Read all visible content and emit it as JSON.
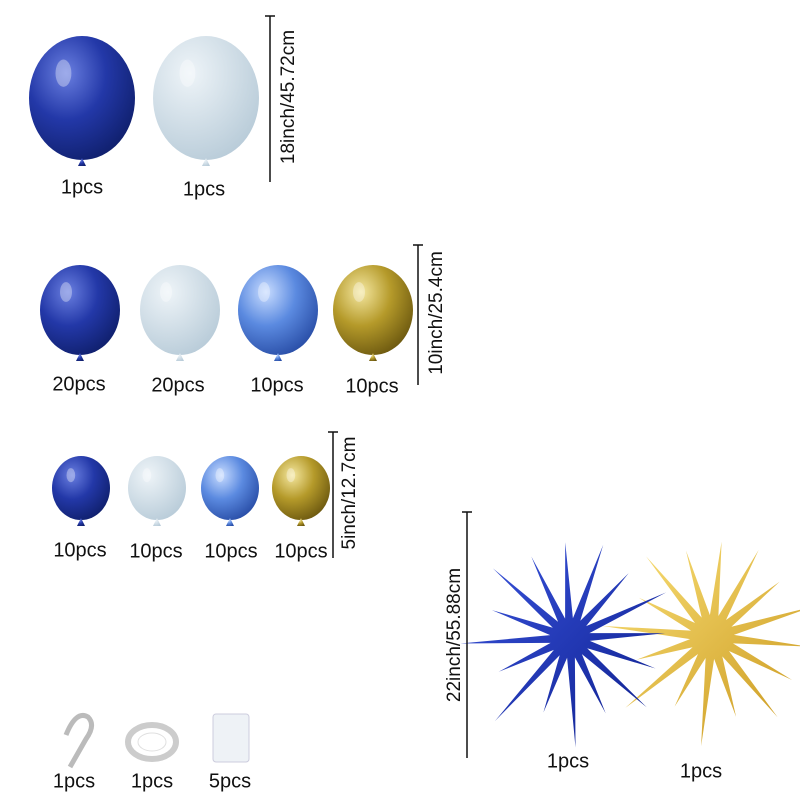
{
  "rows": [
    {
      "size": "18inch/45.72cm",
      "items": [
        "1pcs",
        "1pcs"
      ]
    },
    {
      "size": "10inch/25.4cm",
      "items": [
        "20pcs",
        "20pcs",
        "10pcs",
        "10pcs"
      ]
    },
    {
      "size": "5inch/12.7cm",
      "items": [
        "10pcs",
        "10pcs",
        "10pcs",
        "10pcs"
      ]
    }
  ],
  "starbursts": {
    "size": "22inch/55.88cm",
    "items": [
      "1pcs",
      "1pcs"
    ]
  },
  "accessories": [
    "1pcs",
    "1pcs",
    "5pcs"
  ]
}
